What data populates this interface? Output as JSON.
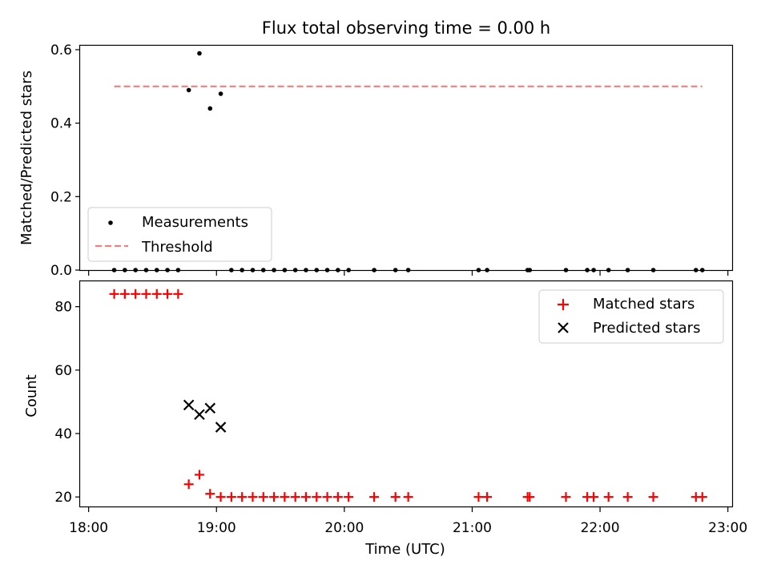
{
  "chart_data": [
    {
      "type": "scatter",
      "title": "Flux total observing time = 0.00 h",
      "ylabel": "Matched/Predicted stars",
      "xlim": [
        "17:56",
        "23:02"
      ],
      "ylim": [
        0,
        0.6
      ],
      "yticks": [
        "0.0",
        "0.2",
        "0.4",
        "0.6"
      ],
      "legend": {
        "position": "lower-left",
        "entries": [
          "Measurements",
          "Threshold"
        ]
      },
      "series": [
        {
          "name": "Measurements",
          "color": "#000000",
          "marker": "dot",
          "x": [
            "18:12",
            "18:17",
            "18:22",
            "18:27",
            "18:32",
            "18:37",
            "18:42",
            "18:47",
            "18:52",
            "18:57",
            "19:02",
            "19:07",
            "19:12",
            "19:17",
            "19:22",
            "19:27",
            "19:32",
            "19:37",
            "19:42",
            "19:47",
            "19:52",
            "19:57",
            "20:02",
            "20:14",
            "20:24",
            "20:30",
            "21:03",
            "21:07",
            "21:26",
            "21:27",
            "21:44",
            "21:54",
            "21:57",
            "22:04",
            "22:13",
            "22:25",
            "22:45",
            "22:48"
          ],
          "y": [
            0,
            0,
            0,
            0,
            0,
            0,
            0,
            0.49,
            0.59,
            0.44,
            0.48,
            0,
            0,
            0,
            0,
            0,
            0,
            0,
            0,
            0,
            0,
            0,
            0,
            0,
            0,
            0,
            0,
            0,
            0,
            0,
            0,
            0,
            0,
            0,
            0,
            0,
            0,
            0
          ]
        },
        {
          "name": "Threshold",
          "color": "#f08080",
          "style": "dashed",
          "x": [
            "18:12",
            "22:48"
          ],
          "y": [
            0.5,
            0.5
          ]
        }
      ]
    },
    {
      "type": "scatter",
      "xlabel": "Time (UTC)",
      "ylabel": "Count",
      "xlim": [
        "17:56",
        "23:02"
      ],
      "ylim": [
        17,
        88
      ],
      "xticks": [
        "18:00",
        "19:00",
        "20:00",
        "21:00",
        "22:00",
        "23:00"
      ],
      "yticks": [
        "20",
        "40",
        "60",
        "80"
      ],
      "legend": {
        "position": "top-right",
        "entries": [
          "Matched stars",
          "Predicted stars"
        ]
      },
      "series": [
        {
          "name": "Matched stars",
          "color": "#ff0000",
          "marker": "plus",
          "x": [
            "18:12",
            "18:17",
            "18:22",
            "18:27",
            "18:32",
            "18:37",
            "18:42",
            "18:47",
            "18:52",
            "18:57",
            "19:02",
            "19:07",
            "19:12",
            "19:17",
            "19:22",
            "19:27",
            "19:32",
            "19:37",
            "19:42",
            "19:47",
            "19:52",
            "19:57",
            "20:02",
            "20:14",
            "20:24",
            "20:30",
            "21:03",
            "21:07",
            "21:26",
            "21:27",
            "21:44",
            "21:54",
            "21:57",
            "22:04",
            "22:13",
            "22:25",
            "22:45",
            "22:48"
          ],
          "y": [
            84,
            84,
            84,
            84,
            84,
            84,
            84,
            24,
            27,
            21,
            20,
            20,
            20,
            20,
            20,
            20,
            20,
            20,
            20,
            20,
            20,
            20,
            20,
            20,
            20,
            20,
            20,
            20,
            20,
            20,
            20,
            20,
            20,
            20,
            20,
            20,
            20,
            20
          ]
        },
        {
          "name": "Predicted stars",
          "color": "#000000",
          "marker": "x",
          "x": [
            "18:47",
            "18:52",
            "18:57",
            "19:02"
          ],
          "y": [
            49,
            46,
            48,
            42
          ]
        }
      ]
    }
  ]
}
